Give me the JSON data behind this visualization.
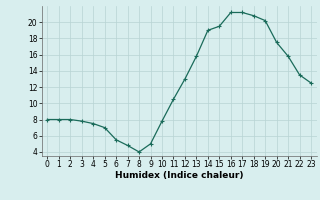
{
  "x": [
    0,
    1,
    2,
    3,
    4,
    5,
    6,
    7,
    8,
    9,
    10,
    11,
    12,
    13,
    14,
    15,
    16,
    17,
    18,
    19,
    20,
    21,
    22,
    23
  ],
  "y": [
    8.0,
    8.0,
    8.0,
    7.8,
    7.5,
    7.0,
    5.5,
    4.8,
    4.0,
    5.0,
    7.8,
    10.5,
    13.0,
    15.8,
    19.0,
    19.5,
    21.2,
    21.2,
    20.8,
    20.2,
    17.5,
    15.8,
    13.5,
    12.5
  ],
  "line_color": "#1a6b5a",
  "marker": "+",
  "marker_size": 3,
  "linewidth": 0.9,
  "xlabel": "Humidex (Indice chaleur)",
  "xlim": [
    -0.5,
    23.5
  ],
  "ylim": [
    3.5,
    22
  ],
  "yticks": [
    4,
    6,
    8,
    10,
    12,
    14,
    16,
    18,
    20
  ],
  "xticks": [
    0,
    1,
    2,
    3,
    4,
    5,
    6,
    7,
    8,
    9,
    10,
    11,
    12,
    13,
    14,
    15,
    16,
    17,
    18,
    19,
    20,
    21,
    22,
    23
  ],
  "bg_color": "#d8eeee",
  "grid_color": "#b8d4d4",
  "tick_fontsize": 5.5,
  "xlabel_fontsize": 6.5
}
